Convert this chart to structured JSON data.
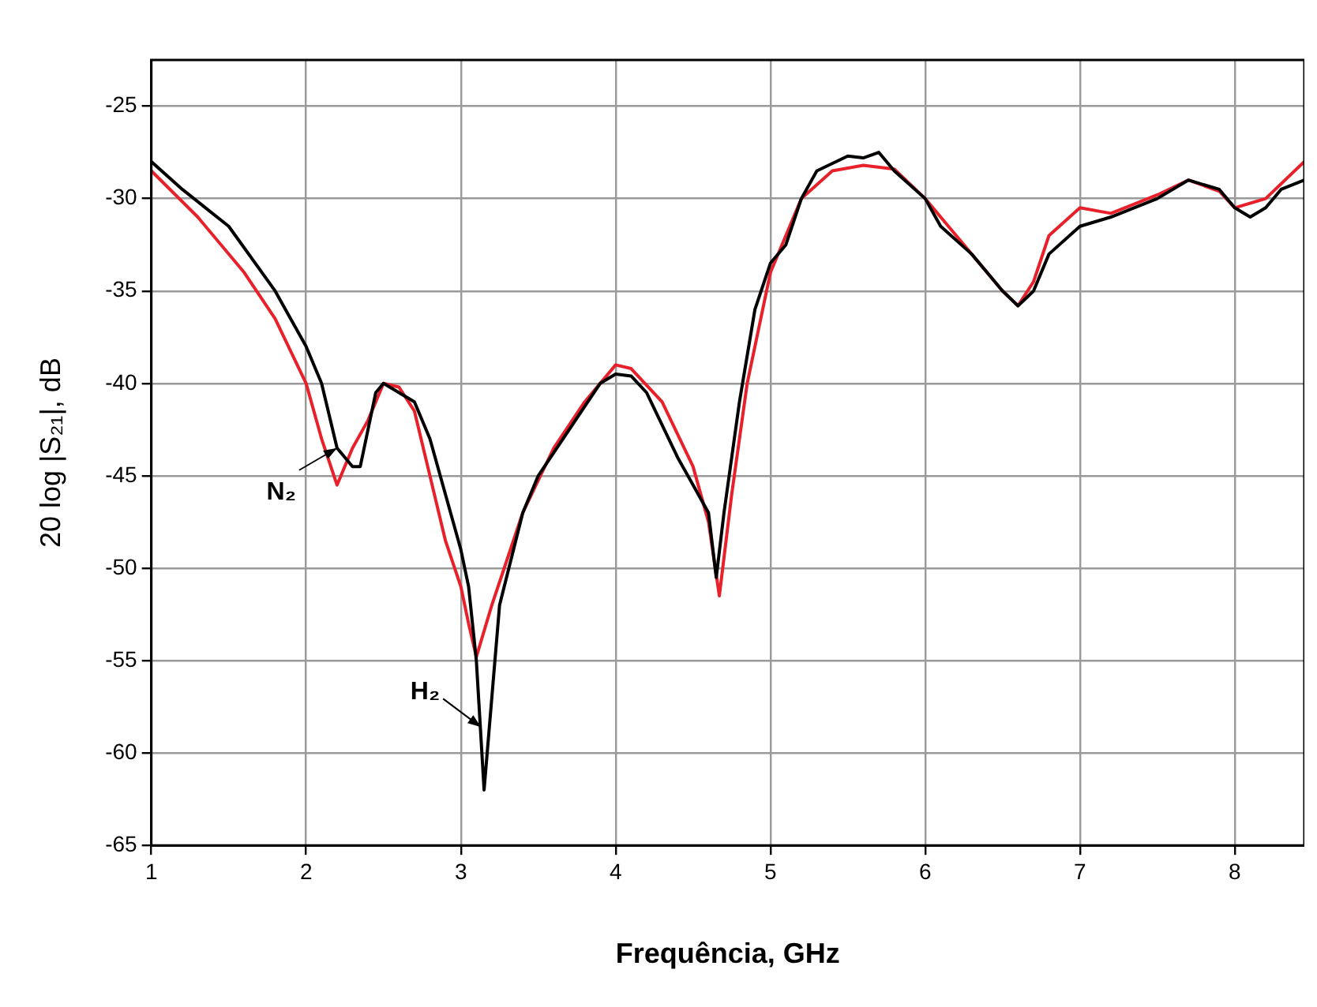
{
  "chart_data": {
    "type": "line",
    "xlabel": "Frequência, GHz",
    "ylabel": "20 log |S₂₁|, dB",
    "xlim": [
      1,
      8.45
    ],
    "ylim": [
      -65,
      -22.5
    ],
    "xticks": [
      1,
      2,
      3,
      4,
      5,
      6,
      7,
      8
    ],
    "yticks": [
      -65,
      -60,
      -55,
      -50,
      -45,
      -40,
      -35,
      -30,
      -25
    ],
    "grid": true,
    "legend": false,
    "marker": "none",
    "line_style": "solid",
    "annotations": [
      {
        "text": "N₂",
        "x": 2.2,
        "y": -43.5
      },
      {
        "text": "H₂",
        "x": 3.13,
        "y": -58.6
      }
    ],
    "series": [
      {
        "color": "#000000",
        "x": [
          1,
          1.2,
          1.5,
          1.8,
          2.0,
          2.1,
          2.2,
          2.3,
          2.35,
          2.45,
          2.5,
          2.6,
          2.7,
          2.8,
          2.9,
          3.0,
          3.05,
          3.1,
          3.15,
          3.2,
          3.25,
          3.4,
          3.5,
          3.7,
          3.9,
          4.0,
          4.1,
          4.2,
          4.4,
          4.5,
          4.6,
          4.65,
          4.7,
          4.8,
          4.9,
          5.0,
          5.1,
          5.2,
          5.3,
          5.5,
          5.6,
          5.7,
          5.8,
          6.0,
          6.1,
          6.3,
          6.4,
          6.5,
          6.6,
          6.7,
          6.8,
          7.0,
          7.2,
          7.5,
          7.7,
          7.9,
          8.0,
          8.1,
          8.2,
          8.3,
          8.45
        ],
        "values": [
          -28,
          -29.5,
          -31.5,
          -35,
          -38,
          -40,
          -43.5,
          -44.5,
          -44.5,
          -40.5,
          -40,
          -40.5,
          -41,
          -43,
          -46,
          -49,
          -51,
          -55,
          -62,
          -57,
          -52,
          -47,
          -45,
          -42.5,
          -40,
          -39.5,
          -39.6,
          -40.5,
          -44,
          -45.5,
          -47,
          -50.5,
          -47,
          -41,
          -36,
          -33.5,
          -32.5,
          -30,
          -28.5,
          -27.7,
          -27.8,
          -27.5,
          -28.5,
          -30,
          -31.5,
          -33,
          -34,
          -35,
          -35.8,
          -35,
          -33,
          -31.5,
          -31,
          -30,
          -29,
          -29.5,
          -30.5,
          -31,
          -30.5,
          -29.5,
          -29
        ]
      },
      {
        "color": "#e8202a",
        "x": [
          1,
          1.3,
          1.6,
          1.8,
          2.0,
          2.1,
          2.2,
          2.3,
          2.4,
          2.5,
          2.6,
          2.7,
          2.8,
          2.9,
          3.0,
          3.05,
          3.1,
          3.2,
          3.3,
          3.4,
          3.6,
          3.8,
          4.0,
          4.1,
          4.3,
          4.5,
          4.6,
          4.67,
          4.75,
          4.85,
          5.0,
          5.1,
          5.2,
          5.4,
          5.6,
          5.8,
          6.0,
          6.1,
          6.3,
          6.5,
          6.6,
          6.7,
          6.8,
          7.0,
          7.2,
          7.5,
          7.7,
          7.9,
          8.0,
          8.2,
          8.45
        ],
        "values": [
          -28.5,
          -31,
          -34,
          -36.5,
          -40,
          -43,
          -45.5,
          -43.5,
          -42,
          -40,
          -40.2,
          -41.5,
          -45,
          -48.5,
          -51,
          -53,
          -54.8,
          -52,
          -49.5,
          -47,
          -43.5,
          -41,
          -39,
          -39.2,
          -41,
          -44.5,
          -47.5,
          -51.5,
          -46,
          -40,
          -34,
          -32,
          -30,
          -28.5,
          -28.2,
          -28.4,
          -30,
          -31,
          -33,
          -35,
          -35.8,
          -34.5,
          -32,
          -30.5,
          -30.8,
          -29.8,
          -29,
          -29.6,
          -30.5,
          -30,
          -28
        ]
      }
    ]
  }
}
